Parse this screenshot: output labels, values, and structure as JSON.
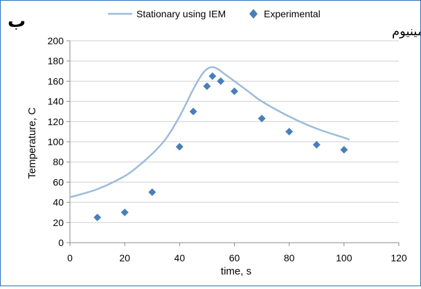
{
  "corner_label": "ب",
  "material_label": "آلومینیوم",
  "chart_data": {
    "type": "line",
    "title": "",
    "xlabel": "time, s",
    "ylabel": "Temperature, C",
    "xlim": [
      0,
      120
    ],
    "ylim": [
      0,
      200
    ],
    "x_ticks": [
      0,
      20,
      40,
      60,
      80,
      100,
      120
    ],
    "y_ticks": [
      0,
      20,
      40,
      60,
      80,
      100,
      120,
      140,
      160,
      180,
      200
    ],
    "grid": "horizontal",
    "legend_position": "top",
    "series": [
      {
        "name": "Stationary using IEM",
        "type": "line",
        "color": "#9bbbd9",
        "x": [
          0,
          10,
          20,
          25,
          30,
          35,
          40,
          45,
          48,
          50,
          52,
          54,
          56,
          60,
          65,
          70,
          80,
          90,
          100,
          102
        ],
        "y": [
          45,
          53,
          66,
          76,
          88,
          103,
          125,
          152,
          166,
          172,
          174,
          172,
          168,
          160,
          150,
          140,
          125,
          113,
          104,
          102
        ]
      },
      {
        "name": "Experimental",
        "type": "scatter",
        "marker": "diamond",
        "color": "#4a7ebb",
        "x": [
          10,
          20,
          30,
          40,
          45,
          50,
          52,
          55,
          60,
          70,
          80,
          90,
          100
        ],
        "y": [
          25,
          30,
          50,
          95,
          130,
          155,
          165,
          160,
          150,
          123,
          110,
          97,
          92
        ]
      }
    ]
  }
}
